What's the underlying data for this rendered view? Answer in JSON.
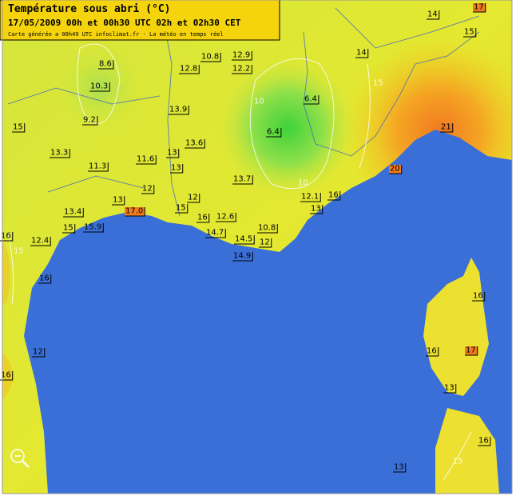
{
  "header": {
    "title": "Température sous abri (°C)",
    "subtitle": "17/05/2009  00h et 00h30 UTC  02h et 02h30 CET",
    "credit": "Carte générée a 00h49 UTC   infoclimat.fr - La météo en temps réel"
  },
  "stations": [
    {
      "label": "8.6"
    },
    {
      "label": "10.8"
    },
    {
      "label": "12.9"
    },
    {
      "label": "12.8"
    },
    {
      "label": "12.2"
    },
    {
      "label": "14"
    },
    {
      "label": "17"
    },
    {
      "label": "15"
    },
    {
      "label": "14"
    },
    {
      "label": "10.3"
    },
    {
      "label": "6.4"
    },
    {
      "label": "15"
    },
    {
      "label": "9.2"
    },
    {
      "label": "13.9"
    },
    {
      "label": "6.4"
    },
    {
      "label": "21"
    },
    {
      "label": "13.3"
    },
    {
      "label": "13.6"
    },
    {
      "label": "13"
    },
    {
      "label": "11.3"
    },
    {
      "label": "11.6"
    },
    {
      "label": "13"
    },
    {
      "label": "20"
    },
    {
      "label": "13.7"
    },
    {
      "label": "12"
    },
    {
      "label": "12.1"
    },
    {
      "label": "16"
    },
    {
      "label": "13"
    },
    {
      "label": "12"
    },
    {
      "label": "13.4"
    },
    {
      "label": "17.0"
    },
    {
      "label": "15"
    },
    {
      "label": "16"
    },
    {
      "label": "12.6"
    },
    {
      "label": "13"
    },
    {
      "label": "16"
    },
    {
      "label": "15"
    },
    {
      "label": "15.9"
    },
    {
      "label": "14.7"
    },
    {
      "label": "10.8"
    },
    {
      "label": "12.4"
    },
    {
      "label": "14.5"
    },
    {
      "label": "12"
    },
    {
      "label": "14.9"
    },
    {
      "label": "16"
    },
    {
      "label": "16"
    },
    {
      "label": "16"
    },
    {
      "label": "17"
    },
    {
      "label": "12"
    },
    {
      "label": "16"
    },
    {
      "label": "13"
    },
    {
      "label": "16"
    },
    {
      "label": "13"
    }
  ],
  "isolines": [
    {
      "label": "10"
    },
    {
      "label": "10"
    },
    {
      "label": "15"
    },
    {
      "label": "15"
    },
    {
      "label": "15"
    }
  ]
}
